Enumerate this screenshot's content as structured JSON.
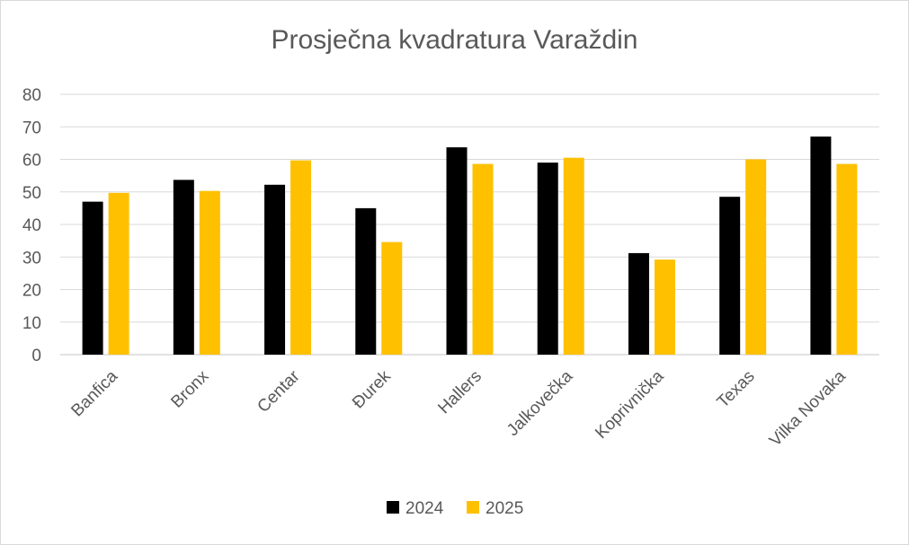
{
  "chart_data": {
    "type": "bar",
    "title": "Prosječna kvadratura Varaždin",
    "xlabel": "",
    "ylabel": "",
    "categories": [
      "Banfica",
      "Bronx",
      "Centar",
      "Đurek",
      "Hallers",
      "Jalkovečka",
      "Koprivnička",
      "Texas",
      "Vilka Novaka"
    ],
    "series": [
      {
        "name": "2024",
        "color": "#000000",
        "values": [
          47,
          53.7,
          52.2,
          45,
          63.7,
          59,
          31.2,
          48.5,
          67
        ]
      },
      {
        "name": "2025",
        "color": "#ffc000",
        "values": [
          49.7,
          50.3,
          59.7,
          34.6,
          58.6,
          60.5,
          29.2,
          60,
          58.6
        ]
      }
    ],
    "ylim": [
      0,
      80
    ],
    "yticks": [
      0,
      10,
      20,
      30,
      40,
      50,
      60,
      70,
      80
    ],
    "grid": true,
    "legend_position": "bottom"
  }
}
